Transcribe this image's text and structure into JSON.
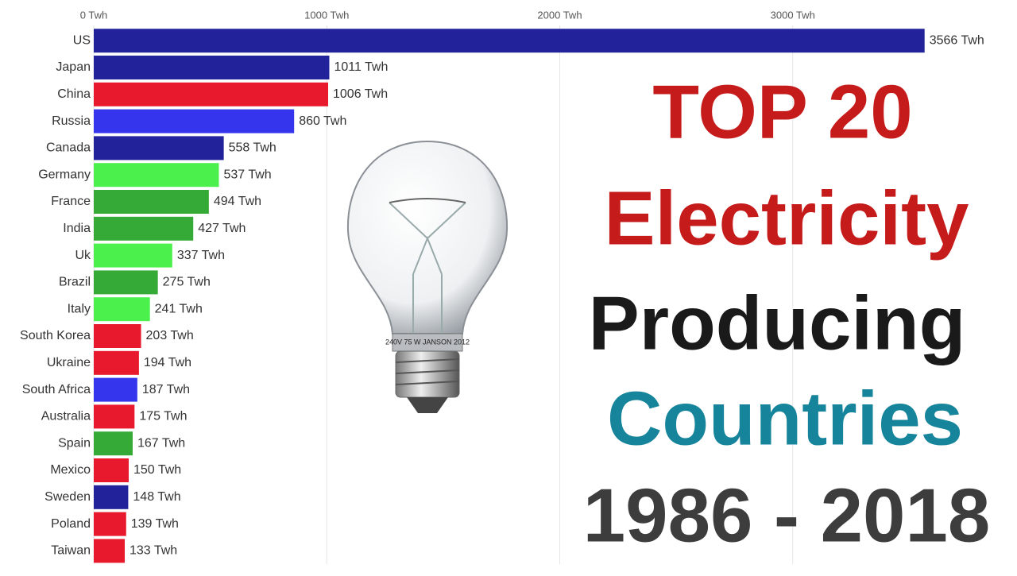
{
  "chart_data": {
    "type": "bar",
    "orientation": "horizontal",
    "title_lines": [
      "TOP 20",
      "Electricity",
      "Producing",
      "Countries",
      "1986 - 2018"
    ],
    "categories": [
      "US",
      "Japan",
      "China",
      "Russia",
      "Canada",
      "Germany",
      "France",
      "India",
      "Uk",
      "Brazil",
      "Italy",
      "South Korea",
      "Ukraine",
      "South Africa",
      "Australia",
      "Spain",
      "Mexico",
      "Sweden",
      "Poland",
      "Taiwan"
    ],
    "values": [
      3566,
      1011,
      1006,
      860,
      558,
      537,
      494,
      427,
      337,
      275,
      241,
      203,
      194,
      187,
      175,
      167,
      150,
      148,
      139,
      133
    ],
    "value_labels": [
      "3566 Twh",
      "1011 Twh",
      "1006 Twh",
      "860 Twh",
      "558 Twh",
      "537 Twh",
      "494 Twh",
      "427 Twh",
      "337 Twh",
      "275 Twh",
      "241 Twh",
      "203 Twh",
      "194 Twh",
      "187 Twh",
      "175 Twh",
      "167 Twh",
      "150 Twh",
      "148 Twh",
      "139 Twh",
      "133 Twh"
    ],
    "colors": [
      "#22229a",
      "#22229a",
      "#e8192c",
      "#3535ee",
      "#22229a",
      "#4cf04c",
      "#36aa36",
      "#36aa36",
      "#4cf04c",
      "#36aa36",
      "#4cf04c",
      "#e8192c",
      "#e8192c",
      "#3535ee",
      "#e8192c",
      "#36aa36",
      "#e8192c",
      "#22229a",
      "#e8192c",
      "#e8192c"
    ],
    "xlim": [
      0,
      3700
    ],
    "xticks": [
      {
        "value": 0,
        "label": "0 Twh"
      },
      {
        "value": 1000,
        "label": "1000 Twh"
      },
      {
        "value": 2000,
        "label": "2000 Twh"
      },
      {
        "value": 3000,
        "label": "3000 Twh"
      }
    ],
    "grid": true
  }
}
